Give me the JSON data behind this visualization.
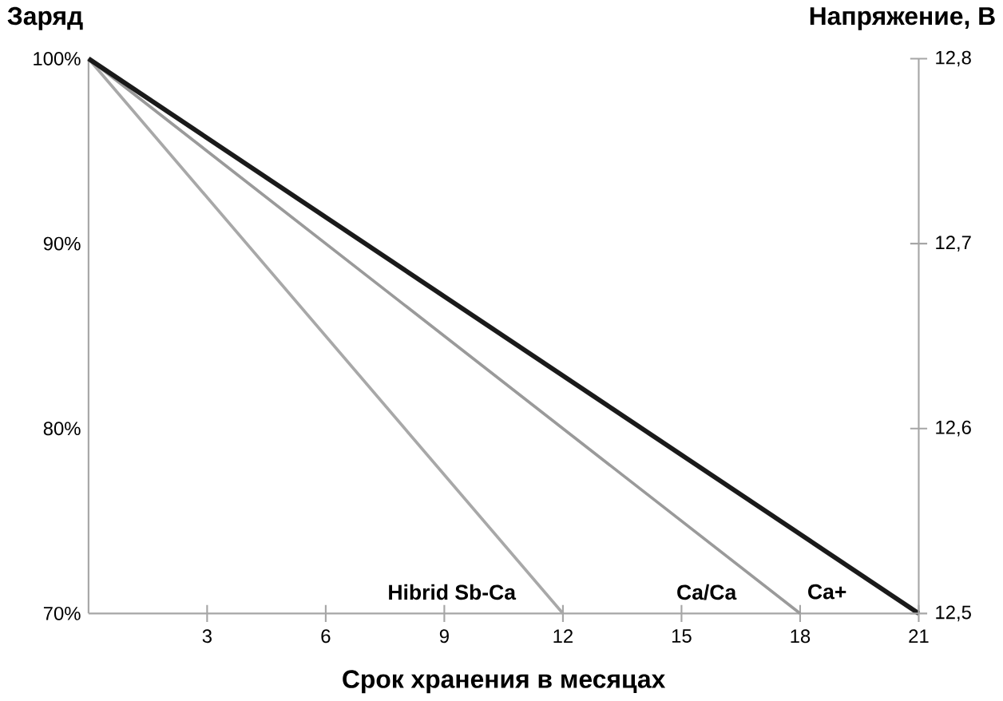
{
  "chart_data": {
    "type": "line",
    "ylabel": "Заряд",
    "y2label": "Напряжение, В",
    "xlabel": "Срок хранения в месяцах",
    "xlim": [
      0,
      21
    ],
    "xticks": [
      3,
      6,
      9,
      12,
      15,
      18,
      21
    ],
    "ylim": [
      70,
      100
    ],
    "yticks": [
      {
        "value": 70,
        "label": "70%"
      },
      {
        "value": 80,
        "label": "80%"
      },
      {
        "value": 90,
        "label": "90%"
      },
      {
        "value": 100,
        "label": "100%"
      }
    ],
    "y2lim": [
      12.5,
      12.8
    ],
    "y2ticks": [
      {
        "value": 12.5,
        "label": "12,5"
      },
      {
        "value": 12.6,
        "label": "12,6"
      },
      {
        "value": 12.7,
        "label": "12,7"
      },
      {
        "value": 12.8,
        "label": "12,8"
      }
    ],
    "series": [
      {
        "name": "Hibrid Sb-Ca",
        "color": "#a8a8a8",
        "x": [
          0,
          12
        ],
        "values": [
          100,
          70
        ]
      },
      {
        "name": "Ca/Ca",
        "color": "#9a9a9a",
        "x": [
          0,
          18
        ],
        "values": [
          100,
          70
        ]
      },
      {
        "name": "Ca+",
        "color": "#1a1a1a",
        "x": [
          0,
          21
        ],
        "values": [
          100,
          70
        ]
      }
    ]
  }
}
